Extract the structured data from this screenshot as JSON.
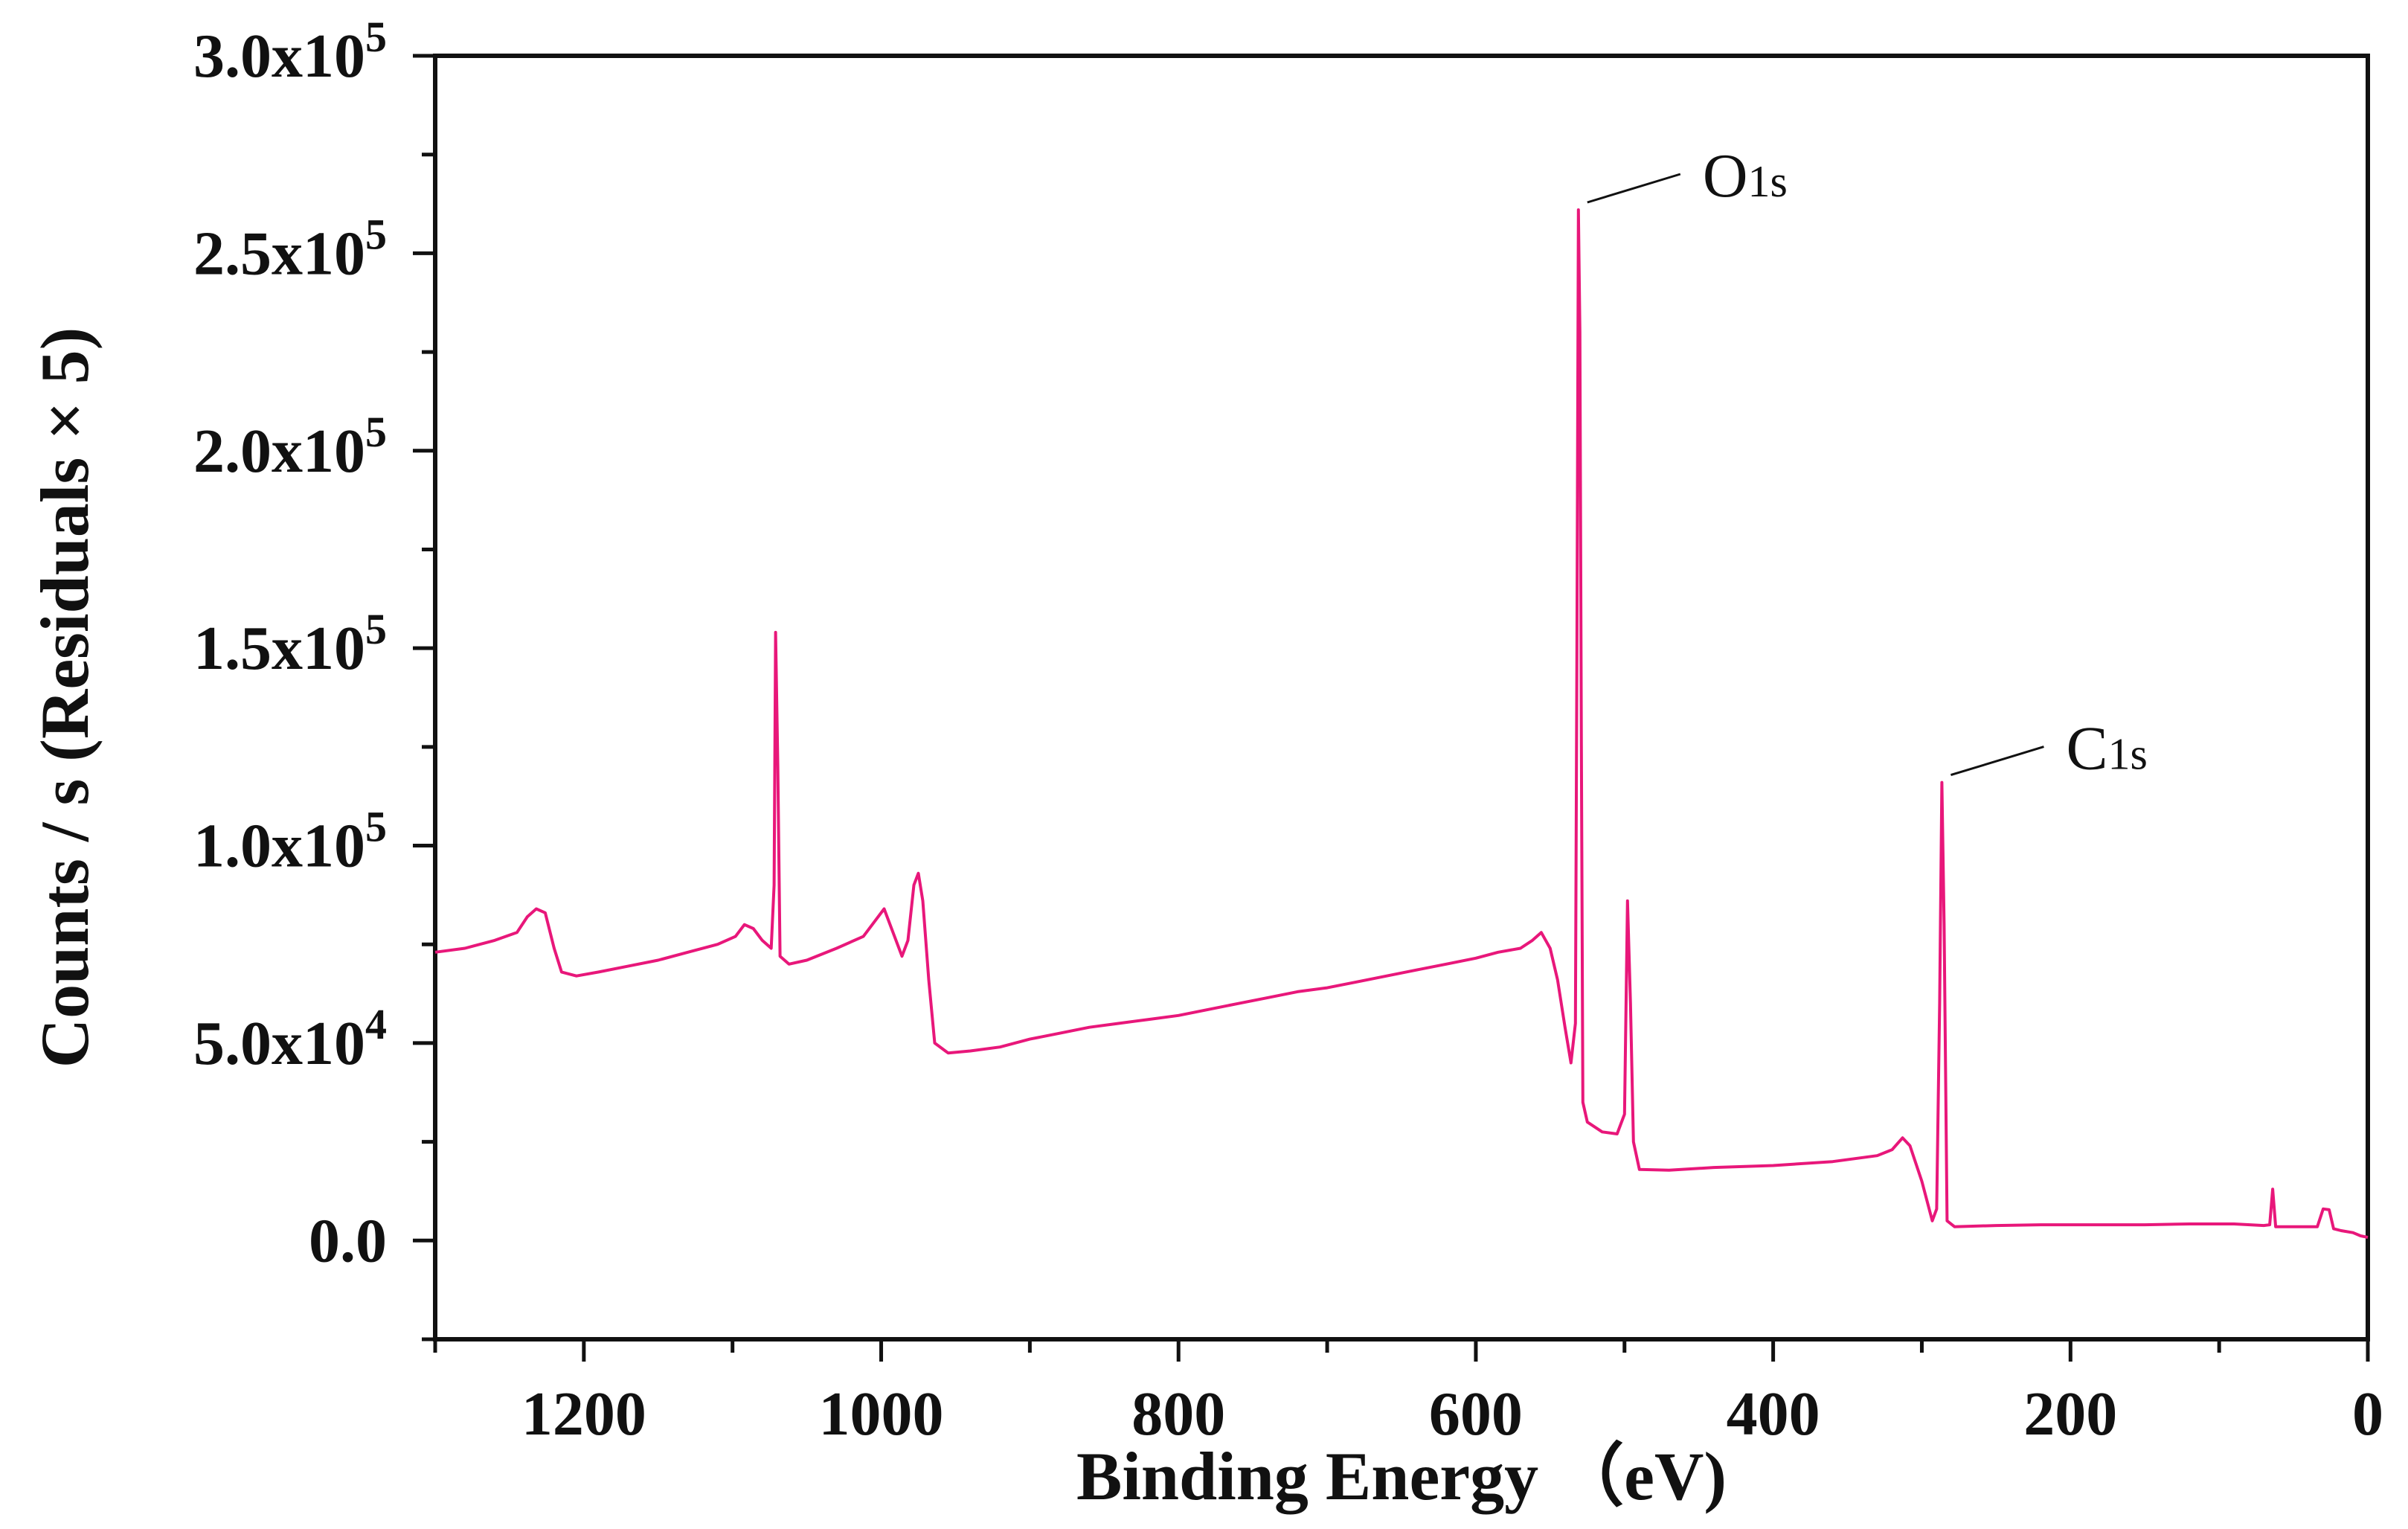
{
  "chart_data": {
    "type": "line",
    "xlabel": "Binding Energy （eV)",
    "ylabel": "Counts / s  (Residuals × 5)",
    "xlim": [
      1300,
      0
    ],
    "ylim": [
      -25000,
      300000
    ],
    "x_reversed": true,
    "x_ticks": [
      1200,
      1000,
      800,
      600,
      400,
      200,
      0
    ],
    "x_tick_labels": [
      "1200",
      "1000",
      "800",
      "600",
      "400",
      "200",
      "0"
    ],
    "y_ticks": [
      0,
      50000,
      100000,
      150000,
      200000,
      250000,
      300000
    ],
    "y_tick_labels": [
      {
        "mantissa": "0.0",
        "exp": ""
      },
      {
        "mantissa": "5.0x10",
        "exp": "4"
      },
      {
        "mantissa": "1.0x10",
        "exp": "5"
      },
      {
        "mantissa": "1.5x10",
        "exp": "5"
      },
      {
        "mantissa": "2.0x10",
        "exp": "5"
      },
      {
        "mantissa": "2.5x10",
        "exp": "5"
      },
      {
        "mantissa": "3.0x10",
        "exp": "5"
      }
    ],
    "grid": false,
    "legend": "none",
    "series": [
      {
        "color": "#e8177a",
        "points": [
          [
            1300,
            73000
          ],
          [
            1280,
            74000
          ],
          [
            1260,
            76000
          ],
          [
            1245,
            78000
          ],
          [
            1238,
            82000
          ],
          [
            1232,
            84000
          ],
          [
            1226,
            83000
          ],
          [
            1220,
            74000
          ],
          [
            1215,
            68000
          ],
          [
            1205,
            67000
          ],
          [
            1190,
            68000
          ],
          [
            1170,
            69500
          ],
          [
            1150,
            71000
          ],
          [
            1130,
            73000
          ],
          [
            1110,
            75000
          ],
          [
            1098,
            77000
          ],
          [
            1092,
            80000
          ],
          [
            1086,
            79000
          ],
          [
            1080,
            76000
          ],
          [
            1074,
            74000
          ],
          [
            1072,
            90000
          ],
          [
            1071,
            154000
          ],
          [
            1069.5,
            120000
          ],
          [
            1068,
            72000
          ],
          [
            1062,
            70000
          ],
          [
            1050,
            71000
          ],
          [
            1030,
            74000
          ],
          [
            1012,
            77000
          ],
          [
            1004,
            81000
          ],
          [
            998,
            84000
          ],
          [
            992,
            78000
          ],
          [
            986,
            72000
          ],
          [
            982,
            76000
          ],
          [
            978,
            90000
          ],
          [
            975,
            93000
          ],
          [
            972,
            86000
          ],
          [
            968,
            66000
          ],
          [
            964,
            50000
          ],
          [
            955,
            47500
          ],
          [
            940,
            48000
          ],
          [
            920,
            49000
          ],
          [
            900,
            51000
          ],
          [
            880,
            52500
          ],
          [
            860,
            54000
          ],
          [
            840,
            55000
          ],
          [
            820,
            56000
          ],
          [
            800,
            57000
          ],
          [
            780,
            58500
          ],
          [
            760,
            60000
          ],
          [
            740,
            61500
          ],
          [
            720,
            63000
          ],
          [
            700,
            64000
          ],
          [
            680,
            65500
          ],
          [
            660,
            67000
          ],
          [
            640,
            68500
          ],
          [
            620,
            70000
          ],
          [
            600,
            71500
          ],
          [
            585,
            73000
          ],
          [
            570,
            74000
          ],
          [
            562,
            76000
          ],
          [
            556,
            78000
          ],
          [
            550,
            74000
          ],
          [
            545,
            66000
          ],
          [
            540,
            54000
          ],
          [
            536,
            45000
          ],
          [
            533,
            55000
          ],
          [
            532,
            150000
          ],
          [
            531,
            261000
          ],
          [
            530,
            230000
          ],
          [
            529,
            125000
          ],
          [
            528,
            35000
          ],
          [
            525,
            30000
          ],
          [
            515,
            27500
          ],
          [
            505,
            27000
          ],
          [
            500,
            32000
          ],
          [
            498,
            86000
          ],
          [
            496,
            60000
          ],
          [
            494,
            25000
          ],
          [
            490,
            18000
          ],
          [
            470,
            17800
          ],
          [
            440,
            18500
          ],
          [
            400,
            19000
          ],
          [
            360,
            20000
          ],
          [
            330,
            21500
          ],
          [
            320,
            23000
          ],
          [
            313,
            26000
          ],
          [
            308,
            24000
          ],
          [
            300,
            15000
          ],
          [
            293,
            5000
          ],
          [
            290,
            8000
          ],
          [
            288,
            60000
          ],
          [
            286.5,
            116000
          ],
          [
            285,
            80000
          ],
          [
            283,
            5000
          ],
          [
            278,
            3500
          ],
          [
            250,
            3800
          ],
          [
            220,
            4000
          ],
          [
            200,
            4000
          ],
          [
            180,
            4000
          ],
          [
            150,
            4000
          ],
          [
            120,
            4200
          ],
          [
            90,
            4200
          ],
          [
            70,
            3800
          ],
          [
            66,
            4000
          ],
          [
            64,
            13000
          ],
          [
            62,
            3500
          ],
          [
            50,
            3500
          ],
          [
            34,
            3500
          ],
          [
            30,
            8000
          ],
          [
            26,
            7800
          ],
          [
            23,
            3000
          ],
          [
            18,
            2500
          ],
          [
            10,
            2000
          ],
          [
            5,
            1200
          ],
          [
            0,
            800
          ]
        ]
      }
    ],
    "annotations": [
      {
        "text": "O1s",
        "main": "O",
        "sub": "1s",
        "x": 531,
        "y": 261000
      },
      {
        "text": "C1s",
        "main": "C",
        "sub": "1s",
        "x": 286.5,
        "y": 116000
      }
    ]
  }
}
